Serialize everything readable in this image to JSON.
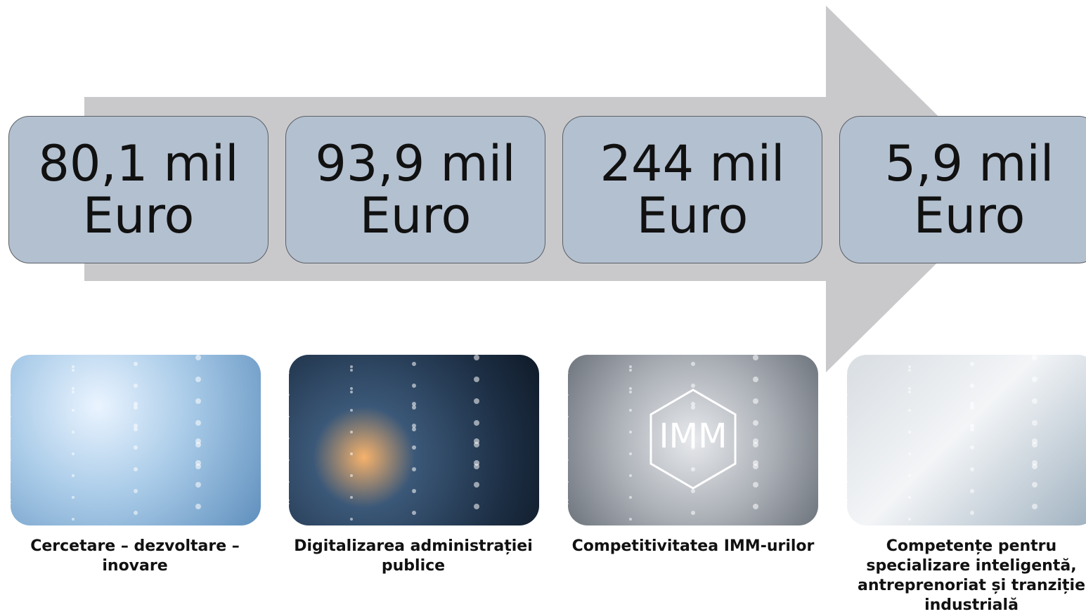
{
  "items": [
    {
      "amount": "80,1 mil",
      "unit": "Euro",
      "caption": "Cercetare – dezvoltare – inovare"
    },
    {
      "amount": "93,9 mil",
      "unit": "Euro",
      "caption": "Digitalizarea administrației publice"
    },
    {
      "amount": "244 mil",
      "unit": "Euro",
      "caption": "Competitivitatea IMM-urilor"
    },
    {
      "amount": "5,9 mil",
      "unit": "Euro",
      "caption": "Competențe pentru specializare inteligentă, antreprenoriat și tranziție industrială"
    }
  ]
}
